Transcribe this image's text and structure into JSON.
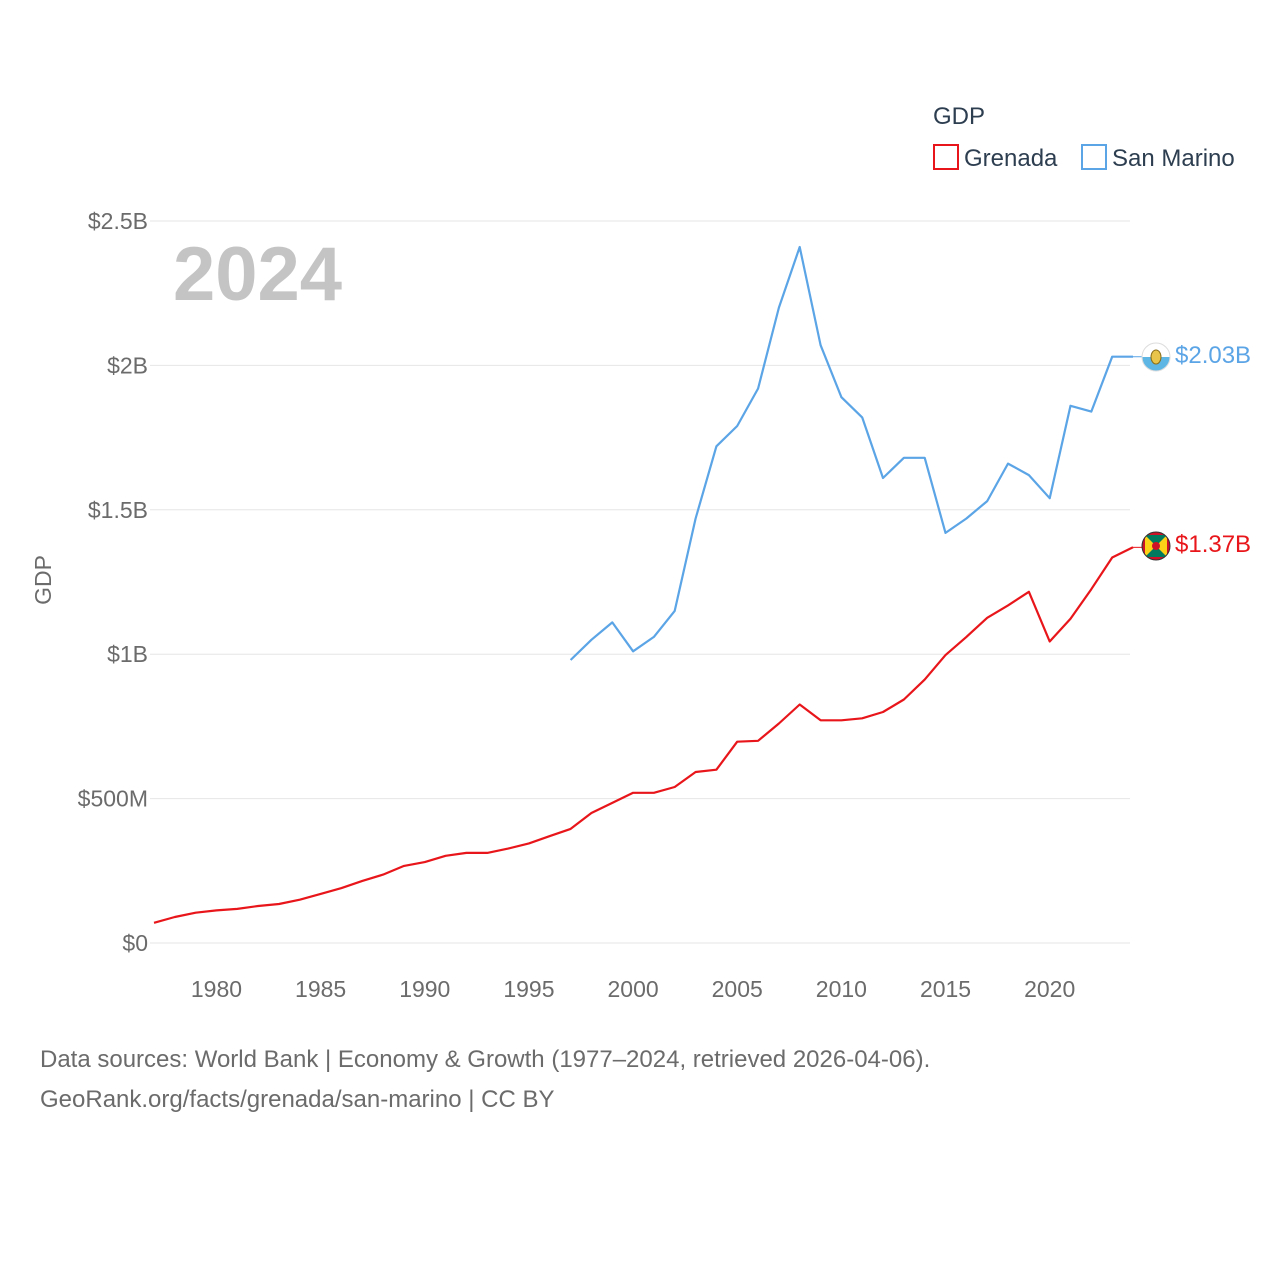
{
  "chart_data": {
    "type": "line",
    "title": "GDP",
    "current_year_label": "2024",
    "ylabel": "GDP",
    "xlabel": "",
    "xlim": [
      1977,
      2024
    ],
    "ylim": [
      0,
      2500000000
    ],
    "x_ticks": [
      1980,
      1985,
      1990,
      1995,
      2000,
      2005,
      2010,
      2015,
      2020
    ],
    "x_tick_labels": [
      "1980",
      "1985",
      "1990",
      "1995",
      "2000",
      "2005",
      "2010",
      "2015",
      "2020"
    ],
    "y_ticks": [
      0,
      500000000,
      1000000000,
      1500000000,
      2000000000,
      2500000000
    ],
    "y_tick_labels": [
      "$0",
      "$500M",
      "$1B",
      "$1.5B",
      "$2B",
      "$2.5B"
    ],
    "legend_title": "GDP",
    "legend_position": "top-right",
    "grid": true,
    "series": [
      {
        "name": "Grenada",
        "color": "#e8161a",
        "end_label": "$1.37B",
        "flag_icon": "grenada-flag-icon",
        "x": [
          1977,
          1978,
          1979,
          1980,
          1981,
          1982,
          1983,
          1984,
          1985,
          1986,
          1987,
          1988,
          1989,
          1990,
          1991,
          1992,
          1993,
          1994,
          1995,
          1996,
          1997,
          1998,
          1999,
          2000,
          2001,
          2002,
          2003,
          2004,
          2005,
          2006,
          2007,
          2008,
          2009,
          2010,
          2011,
          2012,
          2013,
          2014,
          2015,
          2016,
          2017,
          2018,
          2019,
          2020,
          2021,
          2022,
          2023,
          2024
        ],
        "values": [
          70000000,
          90000000,
          105000000,
          113000000,
          118000000,
          128000000,
          135000000,
          150000000,
          170000000,
          190000000,
          215000000,
          237000000,
          267000000,
          280000000,
          302000000,
          312000000,
          312000000,
          327000000,
          345000000,
          370000000,
          395000000,
          450000000,
          485000000,
          520000000,
          520000000,
          540000000,
          592000000,
          600000000,
          697000000,
          700000000,
          760000000,
          826000000,
          771000000,
          771000000,
          778000000,
          800000000,
          843000000,
          912000000,
          997000000,
          1060000000,
          1126000000,
          1169000000,
          1216000000,
          1044000000,
          1123000000,
          1225000000,
          1335000000,
          1370000000
        ]
      },
      {
        "name": "San Marino",
        "color": "#5ba4e6",
        "end_label": "$2.03B",
        "flag_icon": "san-marino-flag-icon",
        "x": [
          1997,
          1998,
          1999,
          2000,
          2001,
          2002,
          2003,
          2004,
          2005,
          2006,
          2007,
          2008,
          2009,
          2010,
          2011,
          2012,
          2013,
          2014,
          2015,
          2016,
          2017,
          2018,
          2019,
          2020,
          2021,
          2022,
          2023,
          2024
        ],
        "values": [
          980000000,
          1050000000,
          1110000000,
          1010000000,
          1060000000,
          1150000000,
          1470000000,
          1720000000,
          1790000000,
          1920000000,
          2200000000,
          2410000000,
          2070000000,
          1890000000,
          1820000000,
          1610000000,
          1680000000,
          1680000000,
          1420000000,
          1470000000,
          1530000000,
          1660000000,
          1620000000,
          1540000000,
          1860000000,
          1840000000,
          2030000000,
          2030000000
        ]
      }
    ]
  },
  "footer": {
    "line1": "Data sources: World Bank | Economy & Growth (1977–2024, retrieved 2026-04-06).",
    "line2": "GeoRank.org/facts/grenada/san-marino | CC BY"
  }
}
